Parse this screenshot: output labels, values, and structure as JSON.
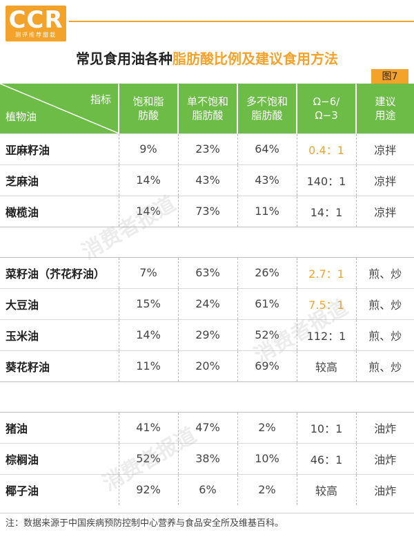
{
  "header": {
    "logo_text": "CCR",
    "logo_sub": "测评推荐甜栽",
    "title_black": "常见食用油各种",
    "title_orange": "脂肪酸比例及建议食用方法",
    "fig_label": "图7"
  },
  "colors": {
    "brand_orange": "#f4a32a",
    "header_green": "#6cbc47"
  },
  "table": {
    "corner_top": "指标",
    "corner_bottom": "植物油",
    "columns": [
      [
        "饱和脂",
        "肪酸"
      ],
      [
        "单不饱和",
        "脂肪酸"
      ],
      [
        "多不饱和",
        "脂肪酸"
      ],
      [
        "Ω−6/",
        "Ω−3"
      ],
      [
        "建议",
        "用途"
      ]
    ],
    "groups": [
      [
        {
          "name": "亚麻籽油",
          "sat": "9%",
          "mono": "23%",
          "poly": "64%",
          "ratio": "0.4：1",
          "ratio_orange": true,
          "use": "凉拌"
        },
        {
          "name": "芝麻油",
          "sat": "14%",
          "mono": "43%",
          "poly": "43%",
          "ratio": "140：1",
          "ratio_orange": false,
          "use": "凉拌"
        },
        {
          "name": "橄榄油",
          "sat": "14%",
          "mono": "73%",
          "poly": "11%",
          "ratio": "14：1",
          "ratio_orange": false,
          "use": "凉拌"
        }
      ],
      [
        {
          "name": "菜籽油（芥花籽油）",
          "sat": "7%",
          "mono": "63%",
          "poly": "26%",
          "ratio": "2.7：1",
          "ratio_orange": true,
          "use": "煎、炒"
        },
        {
          "name": "大豆油",
          "sat": "15%",
          "mono": "24%",
          "poly": "61%",
          "ratio": "7.5：1",
          "ratio_orange": true,
          "use": "煎、炒"
        },
        {
          "name": "玉米油",
          "sat": "14%",
          "mono": "29%",
          "poly": "52%",
          "ratio": "112：1",
          "ratio_orange": false,
          "use": "煎、炒"
        },
        {
          "name": "葵花籽油",
          "sat": "11%",
          "mono": "20%",
          "poly": "69%",
          "ratio": "较高",
          "ratio_orange": false,
          "use": "煎、炒"
        }
      ],
      [
        {
          "name": "猪油",
          "sat": "41%",
          "mono": "47%",
          "poly": "2%",
          "ratio": "10：1",
          "ratio_orange": false,
          "use": "油炸"
        },
        {
          "name": "棕榈油",
          "sat": "52%",
          "mono": "38%",
          "poly": "10%",
          "ratio": "46：1",
          "ratio_orange": false,
          "use": "油炸"
        },
        {
          "name": "椰子油",
          "sat": "92%",
          "mono": "6%",
          "poly": "2%",
          "ratio": "较高",
          "ratio_orange": false,
          "use": "油炸"
        }
      ]
    ]
  },
  "watermark": "消费者报道",
  "footnote": "注：数据来源于中国疾病预防控制中心营养与食品安全所及维基百科。"
}
